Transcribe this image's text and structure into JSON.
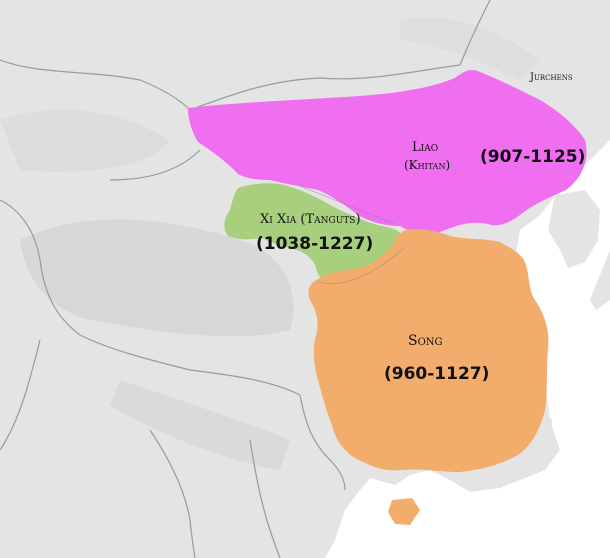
{
  "map": {
    "background_color": "#e4e4e4",
    "sea_color": "#ffffff",
    "border_color": "#9a9a9a"
  },
  "regions": {
    "liao": {
      "name_line1": "Liao",
      "name_line2": "(Khitan)",
      "dates": "(907-1125)",
      "color": "#f06ef0"
    },
    "xixia": {
      "name": "Xi Xia (Tanguts)",
      "dates": "(1038-1227)",
      "color": "#a8cf7e"
    },
    "song": {
      "name": "Song",
      "dates": "(960-1127)",
      "color": "#f2ac6c"
    },
    "jurchens": {
      "name": "Jurchens"
    }
  }
}
